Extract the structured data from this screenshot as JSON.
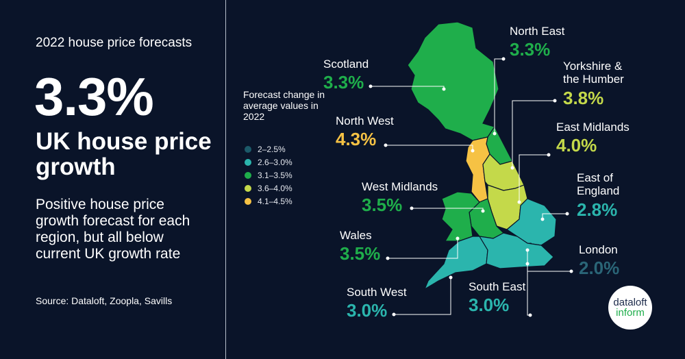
{
  "left": {
    "subtitle": "2022 house price forecasts",
    "big_value": "3.3%",
    "headline": "UK house price growth",
    "description": "Positive house price growth forecast for each region, but all below current UK growth rate",
    "source": "Source: Dataloft, Zoopla, Savills"
  },
  "legend": {
    "title": "Forecast change in average values in 2022",
    "items": [
      {
        "label": "2–2.5%",
        "color": "#1c5a69"
      },
      {
        "label": "2.6–3.0%",
        "color": "#2bb5ad"
      },
      {
        "label": "3.1–3.5%",
        "color": "#1fae4b"
      },
      {
        "label": "3.6–4.0%",
        "color": "#c4d94a"
      },
      {
        "label": "4.1–4.5%",
        "color": "#f6c244"
      }
    ]
  },
  "regions": [
    {
      "id": "scotland",
      "name": "Scotland",
      "value": "3.3%",
      "color": "#1fae4b"
    },
    {
      "id": "north-east",
      "name": "North East",
      "value": "3.3%",
      "color": "#1fae4b"
    },
    {
      "id": "north-west",
      "name": "North West",
      "value": "4.3%",
      "color": "#f6c244"
    },
    {
      "id": "yorkshire",
      "name": "Yorkshire & the Humber",
      "value": "3.8%",
      "color": "#c4d94a"
    },
    {
      "id": "east-midlands",
      "name": "East Midlands",
      "value": "4.0%",
      "color": "#c4d94a"
    },
    {
      "id": "west-midlands",
      "name": "West Midlands",
      "value": "3.5%",
      "color": "#1fae4b"
    },
    {
      "id": "east-of-england",
      "name": "East of England",
      "value": "2.8%",
      "color": "#2bb5ad"
    },
    {
      "id": "wales",
      "name": "Wales",
      "value": "3.5%",
      "color": "#1fae4b"
    },
    {
      "id": "london",
      "name": "London",
      "value": "2.0%",
      "color": "#1c5a69"
    },
    {
      "id": "south-west",
      "name": "South West",
      "value": "3.0%",
      "color": "#2bb5ad"
    },
    {
      "id": "south-east",
      "name": "South East",
      "value": "3.0%",
      "color": "#2bb5ad"
    }
  ],
  "logo": {
    "line1": "dataloft",
    "line2": "inform"
  }
}
